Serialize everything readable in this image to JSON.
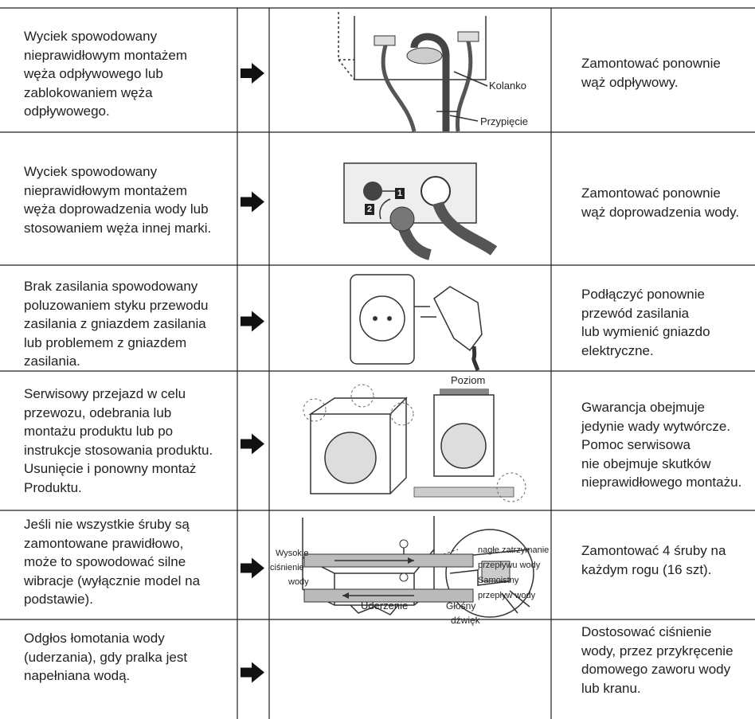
{
  "rows": [
    {
      "problem": [
        "Wyciek spowodowany",
        "nieprawidłowym montażem",
        "węża odpływowego lub",
        "zablokowaniem węża",
        "odpływowego."
      ],
      "labels": [
        "Kolanko",
        "Przypięcie"
      ],
      "solution": [
        "Zamontować ponownie",
        "wąż odpływowy."
      ]
    },
    {
      "problem": [
        "Wyciek spowodowany",
        "nieprawidłowym montażem",
        "węża doprowadzenia wody lub",
        "stosowaniem węża innej marki."
      ],
      "labels": [
        "1",
        "2"
      ],
      "solution": [
        "Zamontować ponownie",
        "wąż doprowadzenia wody."
      ]
    },
    {
      "problem": [
        "Brak zasilania spowodowany",
        "poluzowaniem styku przewodu",
        "zasilania z gniazdem zasilania",
        "lub problemem z gniazdem",
        "zasilania."
      ],
      "labels": [],
      "solution": [
        "Podłączyć ponownie",
        "przewód zasilania",
        "lub wymienić gniazdo",
        "elektryczne."
      ]
    },
    {
      "problem": [
        "Serwisowy przejazd w celu",
        "przewozu, odebrania lub",
        "montażu produktu lub po",
        "instrukcje stosowania produktu.",
        "Usunięcie i ponowny montaż",
        "Produktu."
      ],
      "labels": [
        "Poziom"
      ],
      "solution": [
        "Gwarancja obejmuje",
        "jedynie wady wytwórcze.",
        "Pomoc serwisowa",
        "nie obejmuje skutków",
        "nieprawidłowego montażu."
      ]
    },
    {
      "problem": [
        "Jeśli nie wszystkie śruby są",
        "zamontowane prawidłowo,",
        "może to spowodować silne",
        "wibracje (wyłącznie model na",
        "podstawie)."
      ],
      "labels": [],
      "solution": [
        "Zamontować 4 śruby na",
        "każdym rogu (16 szt)."
      ]
    },
    {
      "problem": [
        "Odgłos łomotania wody",
        "(uderzania), gdy pralka jest",
        "napełniana wodą."
      ],
      "labels": [
        "Wysokie",
        "ciśnienie",
        "wody",
        "nagłe zatrzymanie",
        "przepływu wody",
        "Samoistny",
        "przepływ wody",
        "Uderzenie",
        "Głośny",
        "dźwięk"
      ],
      "solution": [
        "Dostosować ciśnienie",
        "wody, przez przykręcenie",
        "domowego zaworu wody",
        "lub kranu."
      ]
    }
  ]
}
